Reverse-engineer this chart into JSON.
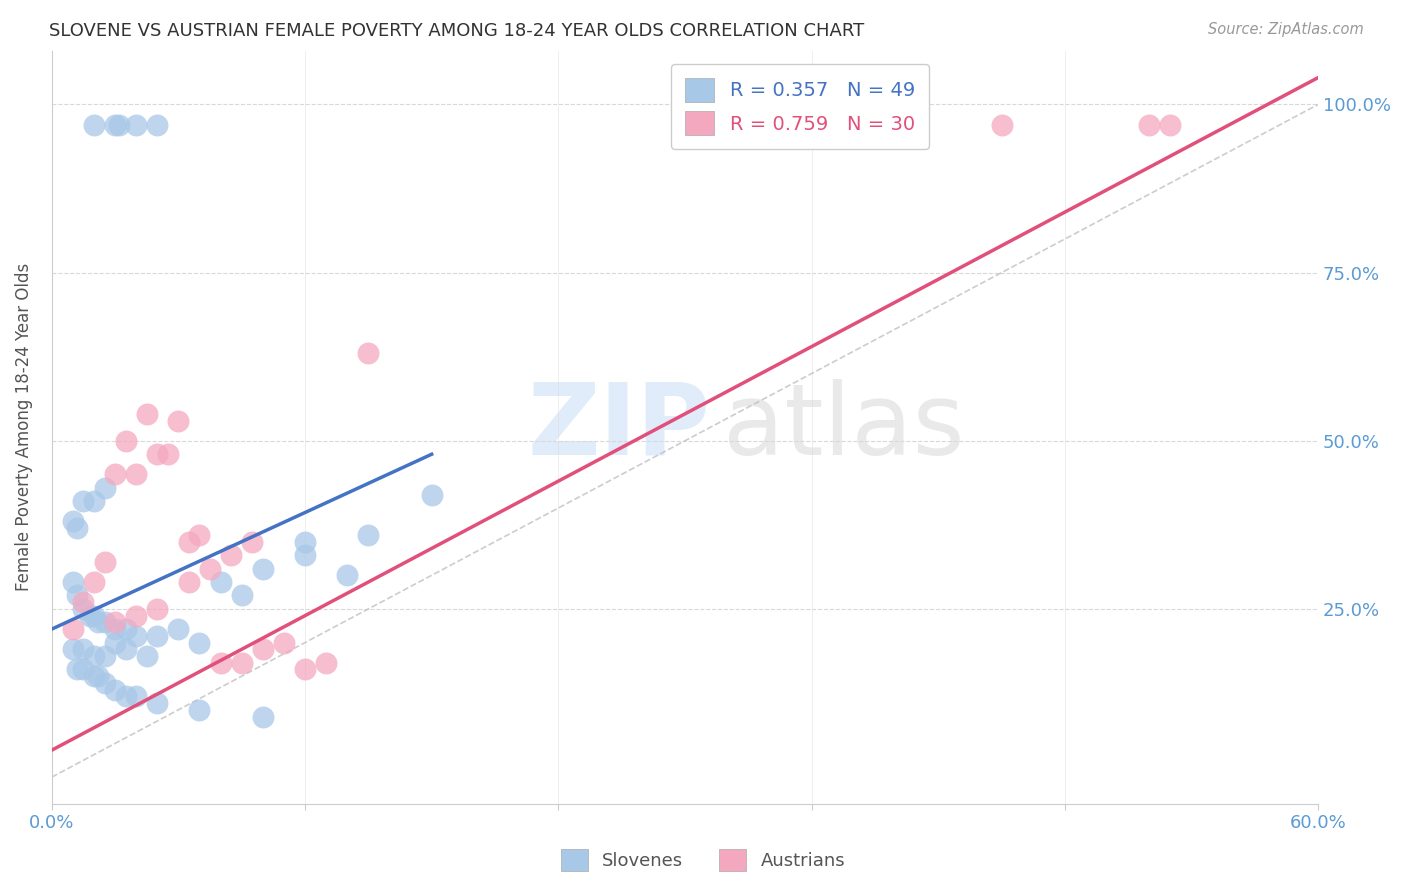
{
  "title": "SLOVENE VS AUSTRIAN FEMALE POVERTY AMONG 18-24 YEAR OLDS CORRELATION CHART",
  "source": "Source: ZipAtlas.com",
  "ylabel": "Female Poverty Among 18-24 Year Olds",
  "ytick_labels": [
    "25.0%",
    "50.0%",
    "75.0%",
    "100.0%"
  ],
  "ytick_positions": [
    25.0,
    50.0,
    75.0,
    100.0
  ],
  "xlim": [
    0.0,
    60.0
  ],
  "ylim": [
    -4.0,
    108.0
  ],
  "slovene_color": "#a8c8e8",
  "austrian_color": "#f4a8c0",
  "slovene_line_color": "#4472c4",
  "austrian_line_color": "#e0507a",
  "diag_line_color": "#c0c0c0",
  "slovene_scatter_x": [
    2.0,
    3.0,
    3.2,
    4.0,
    5.0,
    1.0,
    1.2,
    1.5,
    1.8,
    2.0,
    2.2,
    2.5,
    3.0,
    3.5,
    4.0,
    1.0,
    1.2,
    1.5,
    2.0,
    2.5,
    1.0,
    1.5,
    2.0,
    2.5,
    3.0,
    3.5,
    4.5,
    5.0,
    6.0,
    7.0,
    8.0,
    9.0,
    10.0,
    12.0,
    14.0,
    1.2,
    1.5,
    2.0,
    2.2,
    2.5,
    3.0,
    3.5,
    4.0,
    5.0,
    7.0,
    10.0,
    12.0,
    15.0,
    18.0
  ],
  "slovene_scatter_y": [
    97.0,
    97.0,
    97.0,
    97.0,
    97.0,
    29.0,
    27.0,
    25.0,
    24.0,
    24.0,
    23.0,
    23.0,
    22.0,
    22.0,
    21.0,
    38.0,
    37.0,
    41.0,
    41.0,
    43.0,
    19.0,
    19.0,
    18.0,
    18.0,
    20.0,
    19.0,
    18.0,
    21.0,
    22.0,
    20.0,
    29.0,
    27.0,
    31.0,
    33.0,
    30.0,
    16.0,
    16.0,
    15.0,
    15.0,
    14.0,
    13.0,
    12.0,
    12.0,
    11.0,
    10.0,
    9.0,
    35.0,
    36.0,
    42.0
  ],
  "austrian_scatter_x": [
    1.0,
    1.5,
    2.0,
    2.5,
    3.0,
    4.0,
    5.0,
    5.5,
    3.5,
    4.5,
    6.0,
    6.5,
    7.0,
    8.0,
    9.0,
    10.0,
    11.0,
    12.0,
    13.0,
    15.0,
    3.0,
    4.0,
    5.0,
    6.5,
    7.5,
    8.5,
    9.5,
    45.0,
    52.0,
    53.0
  ],
  "austrian_scatter_y": [
    22.0,
    26.0,
    29.0,
    32.0,
    45.0,
    45.0,
    48.0,
    48.0,
    50.0,
    54.0,
    53.0,
    35.0,
    36.0,
    17.0,
    17.0,
    19.0,
    20.0,
    16.0,
    17.0,
    63.0,
    23.0,
    24.0,
    25.0,
    29.0,
    31.0,
    33.0,
    35.0,
    97.0,
    97.0,
    97.0
  ],
  "slovene_line_x": [
    0.0,
    18.0
  ],
  "slovene_line_y": [
    22.0,
    48.0
  ],
  "austrian_line_x": [
    0.0,
    60.0
  ],
  "austrian_line_y": [
    4.0,
    104.0
  ],
  "diag_line_x": [
    0.0,
    60.0
  ],
  "diag_line_y": [
    0.0,
    100.0
  ],
  "background_color": "#ffffff",
  "grid_color": "#d8d8d8"
}
